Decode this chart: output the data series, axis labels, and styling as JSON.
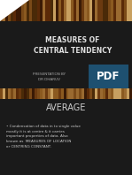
{
  "bg_color": "#1a1a1a",
  "title_text": "MEASURES OF\nCENTRAL TENDENCY",
  "title_color": "#e0e0e0",
  "subtitle_text": "PRESENTATION BY\nDR DHARUV",
  "subtitle_color": "#aaaaaa",
  "pdf_label": "PDF",
  "pdf_bg": "#1e5070",
  "pdf_text_color": "#ffffff",
  "section_title": "AVERAGE",
  "section_title_color": "#d0d0d0",
  "body_text": "Condensation of data in to single value\nmostly it is at centre & it carries\nimportant properties of data. Also\nknown as  MEASURES OF LOCATION\nor CENTRING CONSTANT.",
  "body_color": "#cccccc",
  "dark_bg": "#1a1a1a",
  "deco_colors": [
    "#6b3a10",
    "#8b5a20",
    "#4a2a08",
    "#9a6a30",
    "#3a1a05",
    "#c8a060",
    "#7a4a18",
    "#5a2a08"
  ],
  "white_tri_color": "#ffffff",
  "title_fontsize": 5.5,
  "subtitle_fontsize": 3.0,
  "average_fontsize": 7.0,
  "body_fontsize": 3.0
}
